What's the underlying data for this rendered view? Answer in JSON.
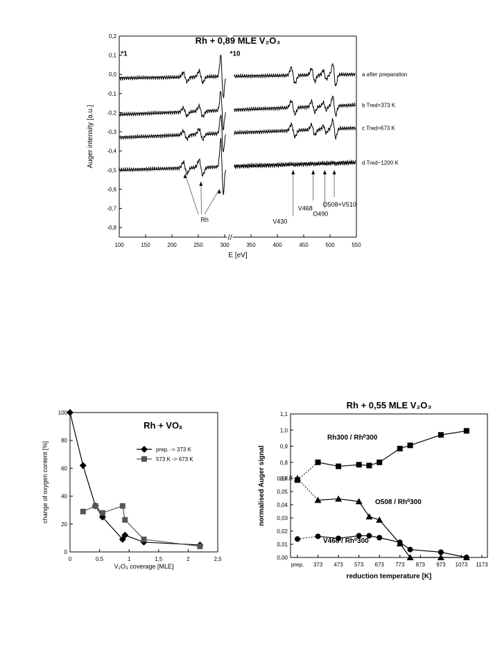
{
  "chart_data": [
    {
      "id": "auger",
      "type": "line",
      "title": "Rh + 0,89 MLE V₂O₃",
      "xlabel": "E [eV]",
      "ylabel": "Auger intensity [a.u.]",
      "xlim": [
        100,
        550
      ],
      "ylim": [
        -0.85,
        0.2
      ],
      "axis_break_x": 310,
      "xticks": [
        "100",
        "150",
        "200",
        "250",
        "300",
        "350",
        "400",
        "450",
        "500",
        "550"
      ],
      "yticks": [
        "0,2",
        "0,1",
        "0,0",
        "-0,1",
        "-0,2",
        "-0,3",
        "-0,4",
        "-0,5",
        "-0,6",
        "-0,7",
        "-0,8"
      ],
      "scale_labels": [
        {
          "text": "*1",
          "x": 103,
          "y": 0.17
        },
        {
          "text": "*10",
          "x": 310,
          "y": 0.17
        }
      ],
      "series": [
        {
          "name": "a  after preparation",
          "baseline": -0.02,
          "end": 0.0,
          "amp": 1.0,
          "vamp": 1.0
        },
        {
          "name": "b  Tred=373 K",
          "baseline": -0.21,
          "end": -0.16,
          "amp": 0.9,
          "vamp": 0.85
        },
        {
          "name": "c  Tred=673 K",
          "baseline": -0.33,
          "end": -0.28,
          "amp": 0.9,
          "vamp": 0.8
        },
        {
          "name": "d  Tred~1200 K",
          "baseline": -0.5,
          "end": -0.46,
          "amp": 1.3,
          "vamp": 0.05
        }
      ],
      "annotations": [
        {
          "text": "Rh",
          "x": 262,
          "y": -0.77
        },
        {
          "text": "V430",
          "x": 405,
          "y": -0.78
        },
        {
          "text": "V468",
          "x": 453,
          "y": -0.71
        },
        {
          "text": "O490",
          "x": 482,
          "y": -0.74
        },
        {
          "text": "O508+V510",
          "x": 518,
          "y": -0.69
        }
      ]
    },
    {
      "id": "oxygen",
      "type": "line",
      "title": "Rh + VOₓ",
      "xlabel": "V₂O₃ coverage [MLE]",
      "ylabel": "change of oxygen content [%]",
      "xlim": [
        0,
        2.5
      ],
      "ylim": [
        0,
        100
      ],
      "xticks": [
        "0",
        "0,5",
        "1",
        "1,5",
        "2",
        "2,5"
      ],
      "yticks": [
        "0",
        "20",
        "40",
        "60",
        "80",
        "100"
      ],
      "series": [
        {
          "name": "prep. -> 373 K",
          "marker": "diamond",
          "color": "#000000",
          "x": [
            0,
            0.22,
            0.43,
            0.55,
            0.89,
            0.93,
            1.25,
            2.2
          ],
          "y": [
            100,
            62,
            33,
            25,
            9,
            12,
            7,
            5
          ]
        },
        {
          "name": "573 K -> 673 K",
          "marker": "square",
          "color": "#555555",
          "x": [
            0.22,
            0.43,
            0.55,
            0.89,
            0.93,
            1.25,
            2.2
          ],
          "y": [
            29,
            33,
            28,
            33,
            23,
            9,
            4
          ]
        }
      ]
    },
    {
      "id": "reduction",
      "type": "line",
      "title": "Rh + 0,55 MLE V₂O₃",
      "xlabel": "reduction temperature [K]",
      "ylabel": "normalised Auger signal",
      "categories_x": [
        "prep.",
        "373",
        "473",
        "573",
        "673",
        "773",
        "873",
        "973",
        "1073",
        "1173"
      ],
      "yticks_upper": [
        "0,7",
        "0,8",
        "0,9",
        "1,0",
        "1,1"
      ],
      "yticks_lower": [
        "0,00",
        "0,01",
        "0,02",
        "0,03",
        "0,04",
        "0,05",
        "0,06"
      ],
      "series": [
        {
          "name": "Rh300 / Rh⁰300",
          "marker": "square",
          "x": [
            273,
            373,
            473,
            573,
            623,
            673,
            773,
            823,
            973,
            1098
          ],
          "y": [
            0.69,
            0.8,
            0.775,
            0.785,
            0.78,
            0.8,
            0.885,
            0.905,
            0.97,
            0.995
          ]
        },
        {
          "name": "O508 / Rh⁰300",
          "marker": "triangle",
          "x": [
            273,
            373,
            473,
            573,
            623,
            673,
            773,
            823,
            973,
            1098
          ],
          "y": [
            0.06,
            0.0435,
            0.0445,
            0.0425,
            0.031,
            0.0285,
            0.0105,
            0.0,
            0.0,
            0.0
          ]
        },
        {
          "name": "V468 / Rh⁰300",
          "marker": "circle",
          "x": [
            273,
            373,
            473,
            573,
            623,
            673,
            773,
            823,
            973,
            1098
          ],
          "y": [
            0.014,
            0.016,
            0.0145,
            0.0165,
            0.0165,
            0.015,
            0.0115,
            0.006,
            0.004,
            0.0
          ]
        }
      ]
    }
  ]
}
